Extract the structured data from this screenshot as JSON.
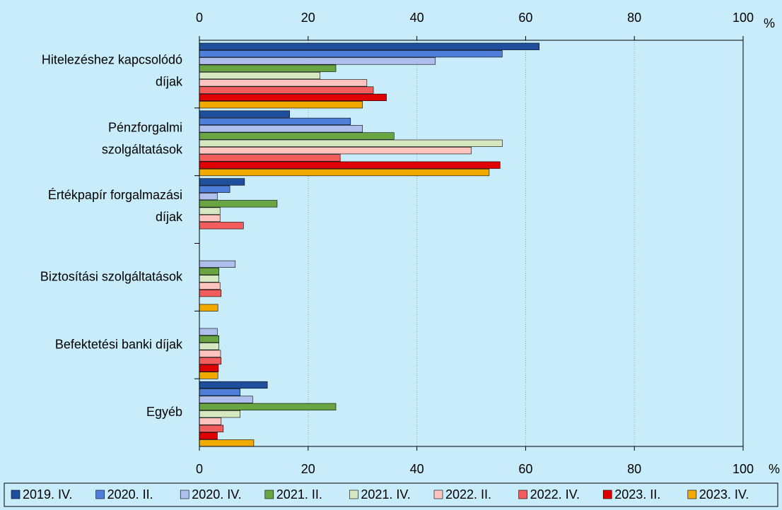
{
  "chart_data": {
    "type": "hbar",
    "categories": [
      "Hitelezéshez kapcsolódó\ndíjak",
      "Pénzforgalmi\nszolgáltatások",
      "Értékpapír forgalmazási\ndíjak",
      "Biztosítási szolgáltatások",
      "Befektetési banki díjak",
      "Egyéb"
    ],
    "series": [
      {
        "name": "2019. IV.",
        "color": "#1f4e9c",
        "values": [
          62.5,
          16.6,
          8.3,
          0,
          0,
          12.5
        ]
      },
      {
        "name": "2020. II.",
        "color": "#4f7fd9",
        "values": [
          55.7,
          27.8,
          5.6,
          0,
          0,
          7.5
        ]
      },
      {
        "name": "2020. IV.",
        "color": "#aebfee",
        "values": [
          43.4,
          30,
          3.3,
          6.6,
          3.3,
          9.8
        ]
      },
      {
        "name": "2021. II.",
        "color": "#6aa544",
        "values": [
          25.1,
          35.8,
          14.3,
          3.6,
          3.6,
          25.1
        ]
      },
      {
        "name": "2021. IV.",
        "color": "#d6e8c0",
        "values": [
          22.2,
          55.7,
          3.8,
          3.6,
          3.6,
          7.5
        ]
      },
      {
        "name": "2022. II.",
        "color": "#ffc4c0",
        "values": [
          30.8,
          50,
          3.8,
          3.8,
          3.9,
          4
        ]
      },
      {
        "name": "2022. IV.",
        "color": "#f25c5c",
        "values": [
          32,
          25.9,
          8.1,
          4,
          4,
          4.4
        ]
      },
      {
        "name": "2023. II.",
        "color": "#e00000",
        "values": [
          34.4,
          55.3,
          0,
          0,
          3.5,
          3.3
        ]
      },
      {
        "name": "2023. IV.",
        "color": "#f2a900",
        "values": [
          30,
          53.3,
          0,
          3.4,
          3.4,
          10
        ]
      }
    ],
    "xlim": [
      0,
      100
    ],
    "xticks": [
      0,
      20,
      40,
      60,
      80,
      100
    ],
    "x_unit": "%",
    "grid": true
  }
}
